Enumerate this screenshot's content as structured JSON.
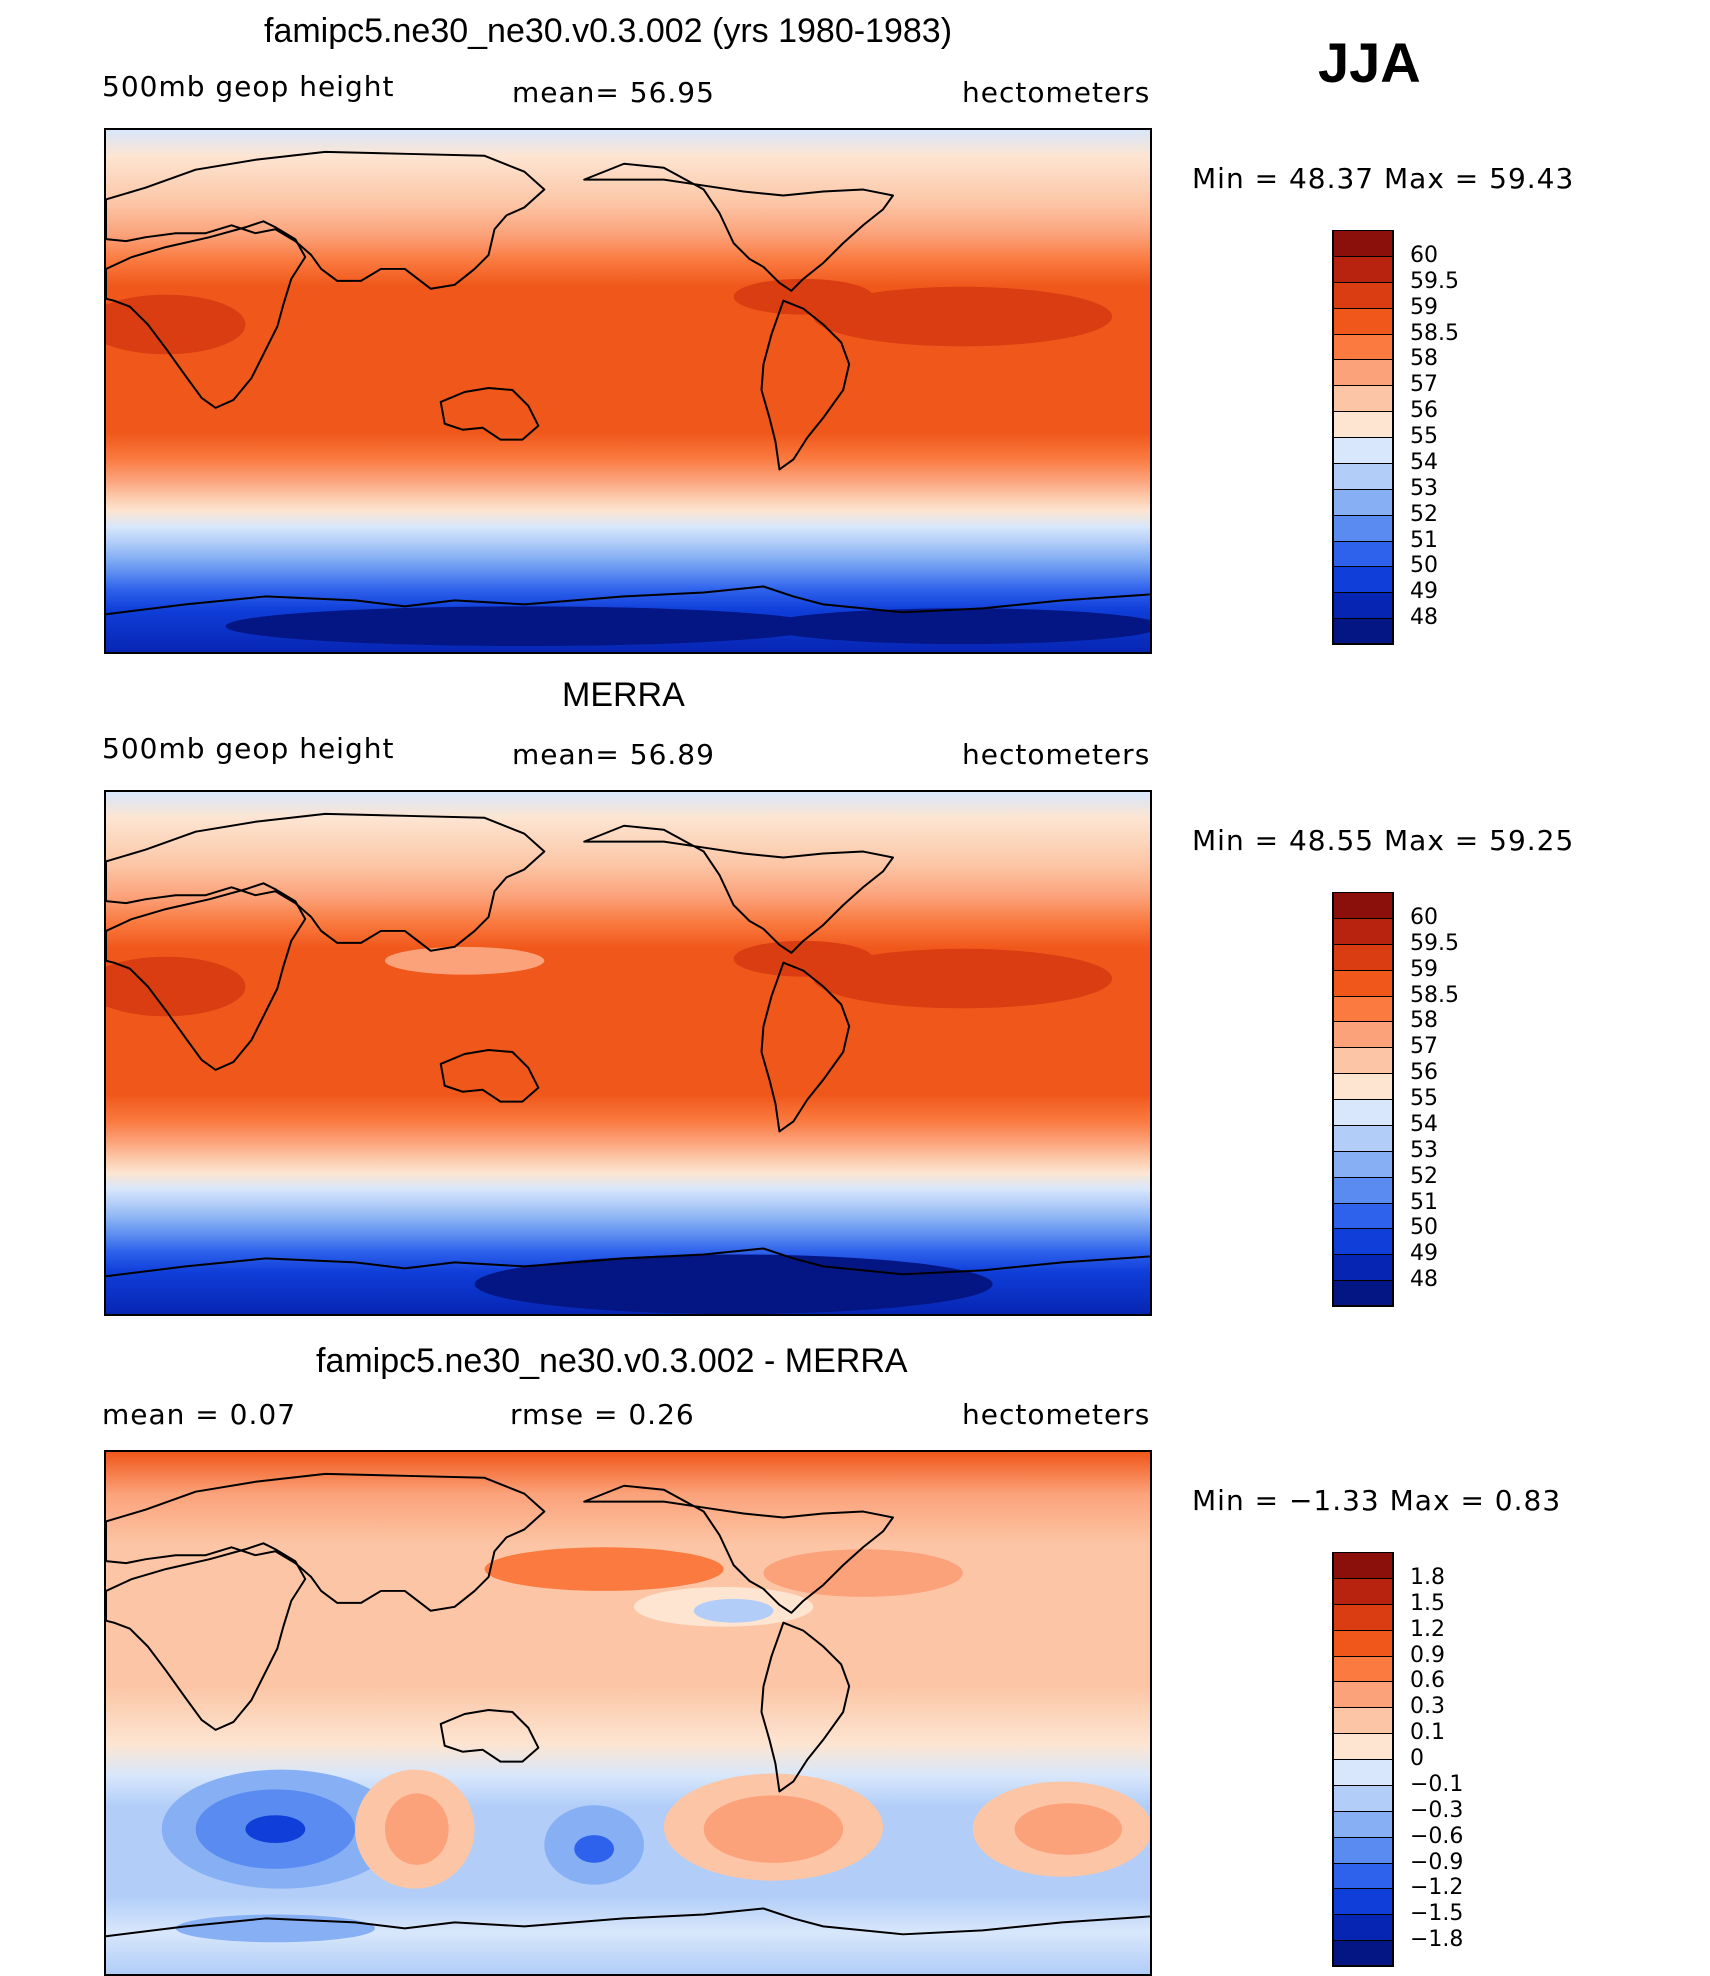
{
  "season_label": "JJA",
  "panels": [
    {
      "title": "famipc5.ne30_ne30.v0.3.002 (yrs 1980-1983)",
      "left_label": "500mb  geop  height",
      "center_label": "mean=   56.95",
      "right_label": "hectometers",
      "minmax_label": "Min  =    48.37  Max  =    59.43",
      "colorbar_labels": [
        "60",
        "59.5",
        "59",
        "58.5",
        "58",
        "57",
        "56",
        "55",
        "54",
        "53",
        "52",
        "51",
        "50",
        "49",
        "48"
      ],
      "colorbar_colors": [
        "#8b0f0a",
        "#b82310",
        "#d93d11",
        "#f0571a",
        "#fa7a40",
        "#fba27a",
        "#fcc6a6",
        "#fde5d2",
        "#d8e7fb",
        "#b1cdf8",
        "#86aff4",
        "#5a8bf0",
        "#2f62ec",
        "#0f3ed9",
        "#0725b3",
        "#041684"
      ],
      "tone": "clim",
      "variant": 1
    },
    {
      "title": "MERRA",
      "left_label": "500mb  geop  height",
      "center_label": "mean=   56.89",
      "right_label": "hectometers",
      "minmax_label": "Min  =    48.55  Max  =    59.25",
      "colorbar_labels": [
        "60",
        "59.5",
        "59",
        "58.5",
        "58",
        "57",
        "56",
        "55",
        "54",
        "53",
        "52",
        "51",
        "50",
        "49",
        "48"
      ],
      "colorbar_colors": [
        "#8b0f0a",
        "#b82310",
        "#d93d11",
        "#f0571a",
        "#fa7a40",
        "#fba27a",
        "#fcc6a6",
        "#fde5d2",
        "#d8e7fb",
        "#b1cdf8",
        "#86aff4",
        "#5a8bf0",
        "#2f62ec",
        "#0f3ed9",
        "#0725b3",
        "#041684"
      ],
      "tone": "clim",
      "variant": 2
    },
    {
      "title": "famipc5.ne30_ne30.v0.3.002 - MERRA",
      "left_label": "mean  =      0.07",
      "center_label": "rmse  =      0.26",
      "right_label": "hectometers",
      "minmax_label": "Min  =    −1.33  Max  =      0.83",
      "colorbar_labels": [
        "1.8",
        "1.5",
        "1.2",
        "0.9",
        "0.6",
        "0.3",
        "0.1",
        "0",
        "−0.1",
        "−0.3",
        "−0.6",
        "−0.9",
        "−1.2",
        "−1.5",
        "−1.8"
      ],
      "colorbar_colors": [
        "#8b0f0a",
        "#b82310",
        "#d93d11",
        "#f0571a",
        "#fa7a40",
        "#fba27a",
        "#fcc6a6",
        "#fde5d2",
        "#d8e7fb",
        "#b1cdf8",
        "#86aff4",
        "#5a8bf0",
        "#2f62ec",
        "#0f3ed9",
        "#0725b3",
        "#041684"
      ],
      "tone": "diff",
      "variant": 3
    }
  ],
  "chart_data": [
    {
      "type": "heatmap",
      "title": "famipc5.ne30_ne30.v0.3.002 (yrs 1980-1983)",
      "variable": "500mb  geop  height",
      "units": "hectometers",
      "mean": 56.95,
      "min": 48.37,
      "max": 59.43,
      "contour_levels": [
        48,
        49,
        50,
        51,
        52,
        53,
        54,
        55,
        56,
        57,
        58,
        58.5,
        59,
        59.5,
        60
      ]
    },
    {
      "type": "heatmap",
      "title": "MERRA",
      "variable": "500mb  geop  height",
      "units": "hectometers",
      "mean": 56.89,
      "min": 48.55,
      "max": 59.25,
      "contour_levels": [
        48,
        49,
        50,
        51,
        52,
        53,
        54,
        55,
        56,
        57,
        58,
        58.5,
        59,
        59.5,
        60
      ]
    },
    {
      "type": "heatmap",
      "title": "famipc5.ne30_ne30.v0.3.002 - MERRA",
      "units": "hectometers",
      "mean": 0.07,
      "rmse": 0.26,
      "min": -1.33,
      "max": 0.83,
      "contour_levels": [
        -1.8,
        -1.5,
        -1.2,
        -0.9,
        -0.6,
        -0.3,
        -0.1,
        0,
        0.1,
        0.3,
        0.6,
        0.9,
        1.2,
        1.5,
        1.8
      ]
    }
  ]
}
